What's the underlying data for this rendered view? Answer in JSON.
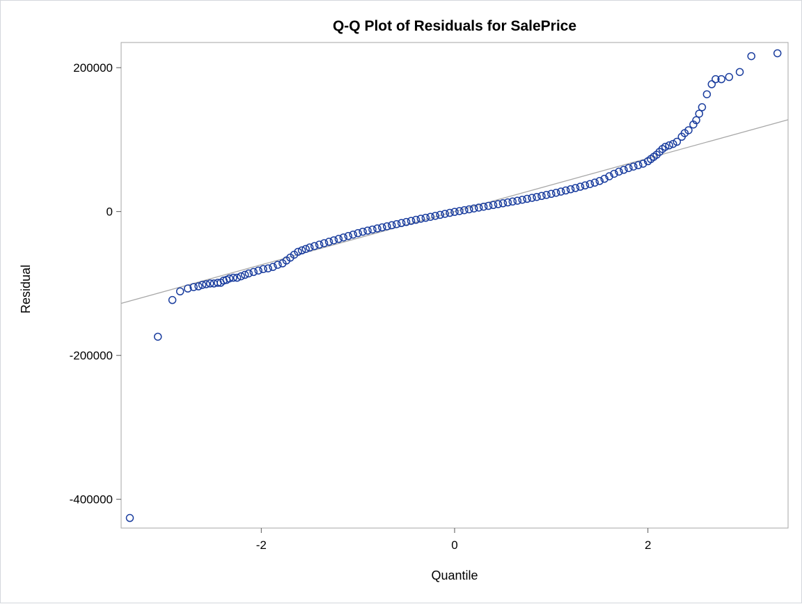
{
  "chart_data": {
    "type": "scatter",
    "title": "Q-Q Plot of Residuals for SalePrice",
    "xlabel": "Quantile",
    "ylabel": "Residual",
    "xlim": [
      -3.45,
      3.45
    ],
    "ylim": [
      -440000,
      235000
    ],
    "x_ticks": [
      -2,
      0,
      2
    ],
    "x_tick_labels": [
      "-2",
      "0",
      "2"
    ],
    "y_ticks": [
      -400000,
      -200000,
      0,
      200000
    ],
    "y_tick_labels": [
      "-400000",
      "-200000",
      "0",
      "200000"
    ],
    "reference_line": {
      "slope": 37000,
      "intercept": 0
    },
    "grid": false,
    "legend": "none",
    "points": [
      [
        -3.36,
        -426000
      ],
      [
        -3.07,
        -174000
      ],
      [
        -2.92,
        -123000
      ],
      [
        -2.84,
        -111000
      ],
      [
        -2.76,
        -107000
      ],
      [
        -2.7,
        -105000
      ],
      [
        -2.65,
        -104000
      ],
      [
        -2.61,
        -102000
      ],
      [
        -2.57,
        -101000
      ],
      [
        -2.53,
        -100000
      ],
      [
        -2.49,
        -100000
      ],
      [
        -2.45,
        -99000
      ],
      [
        -2.42,
        -99000
      ],
      [
        -2.39,
        -96000
      ],
      [
        -2.36,
        -95000
      ],
      [
        -2.33,
        -93000
      ],
      [
        -2.29,
        -92000
      ],
      [
        -2.25,
        -92000
      ],
      [
        -2.21,
        -90000
      ],
      [
        -2.17,
        -88000
      ],
      [
        -2.13,
        -86000
      ],
      [
        -2.08,
        -84000
      ],
      [
        -2.03,
        -82000
      ],
      [
        -1.98,
        -80000
      ],
      [
        -1.93,
        -79000
      ],
      [
        -1.88,
        -77000
      ],
      [
        -1.83,
        -74000
      ],
      [
        -1.78,
        -72000
      ],
      [
        -1.74,
        -68000
      ],
      [
        -1.7,
        -64000
      ],
      [
        -1.66,
        -60000
      ],
      [
        -1.62,
        -56000
      ],
      [
        -1.58,
        -54000
      ],
      [
        -1.54,
        -52000
      ],
      [
        -1.5,
        -50000
      ],
      [
        -1.45,
        -48000
      ],
      [
        -1.4,
        -46000
      ],
      [
        -1.35,
        -44000
      ],
      [
        -1.3,
        -42000
      ],
      [
        -1.25,
        -40000
      ],
      [
        -1.2,
        -38000
      ],
      [
        -1.15,
        -36000
      ],
      [
        -1.1,
        -34000
      ],
      [
        -1.05,
        -32000
      ],
      [
        -1,
        -30000
      ],
      [
        -0.95,
        -28000
      ],
      [
        -0.9,
        -26500
      ],
      [
        -0.85,
        -25000
      ],
      [
        -0.8,
        -23500
      ],
      [
        -0.75,
        -22000
      ],
      [
        -0.7,
        -20500
      ],
      [
        -0.65,
        -19000
      ],
      [
        -0.6,
        -17500
      ],
      [
        -0.55,
        -16000
      ],
      [
        -0.5,
        -14500
      ],
      [
        -0.45,
        -13000
      ],
      [
        -0.4,
        -11500
      ],
      [
        -0.35,
        -10000
      ],
      [
        -0.3,
        -8700
      ],
      [
        -0.25,
        -7300
      ],
      [
        -0.2,
        -6000
      ],
      [
        -0.15,
        -4600
      ],
      [
        -0.1,
        -3200
      ],
      [
        -0.05,
        -1800
      ],
      [
        0,
        -500
      ],
      [
        0.05,
        700
      ],
      [
        0.1,
        1900
      ],
      [
        0.15,
        3100
      ],
      [
        0.2,
        4300
      ],
      [
        0.25,
        5500
      ],
      [
        0.3,
        6700
      ],
      [
        0.35,
        7900
      ],
      [
        0.4,
        9100
      ],
      [
        0.45,
        10300
      ],
      [
        0.5,
        11500
      ],
      [
        0.55,
        12700
      ],
      [
        0.6,
        13900
      ],
      [
        0.65,
        15100
      ],
      [
        0.7,
        16400
      ],
      [
        0.75,
        17700
      ],
      [
        0.8,
        19000
      ],
      [
        0.85,
        20300
      ],
      [
        0.9,
        21700
      ],
      [
        0.95,
        23100
      ],
      [
        1,
        24600
      ],
      [
        1.05,
        26100
      ],
      [
        1.1,
        27700
      ],
      [
        1.15,
        29300
      ],
      [
        1.2,
        31000
      ],
      [
        1.25,
        32700
      ],
      [
        1.3,
        34500
      ],
      [
        1.35,
        36300
      ],
      [
        1.4,
        38200
      ],
      [
        1.45,
        40200
      ],
      [
        1.5,
        42500
      ],
      [
        1.55,
        45500
      ],
      [
        1.6,
        49000
      ],
      [
        1.65,
        52500
      ],
      [
        1.7,
        55500
      ],
      [
        1.75,
        58000
      ],
      [
        1.8,
        60500
      ],
      [
        1.85,
        62500
      ],
      [
        1.9,
        64500
      ],
      [
        1.95,
        66500
      ],
      [
        2,
        70000
      ],
      [
        2.03,
        73000
      ],
      [
        2.06,
        76000
      ],
      [
        2.09,
        79000
      ],
      [
        2.12,
        83000
      ],
      [
        2.15,
        87000
      ],
      [
        2.18,
        90000
      ],
      [
        2.22,
        92000
      ],
      [
        2.26,
        94000
      ],
      [
        2.3,
        97000
      ],
      [
        2.35,
        104000
      ],
      [
        2.38,
        109000
      ],
      [
        2.42,
        113000
      ],
      [
        2.47,
        121000
      ],
      [
        2.5,
        127000
      ],
      [
        2.53,
        136000
      ],
      [
        2.56,
        145000
      ],
      [
        2.61,
        163000
      ],
      [
        2.66,
        177000
      ],
      [
        2.7,
        184000
      ],
      [
        2.76,
        184000
      ],
      [
        2.84,
        187000
      ],
      [
        2.95,
        194000
      ],
      [
        3.07,
        216000
      ],
      [
        3.34,
        220000
      ]
    ]
  }
}
